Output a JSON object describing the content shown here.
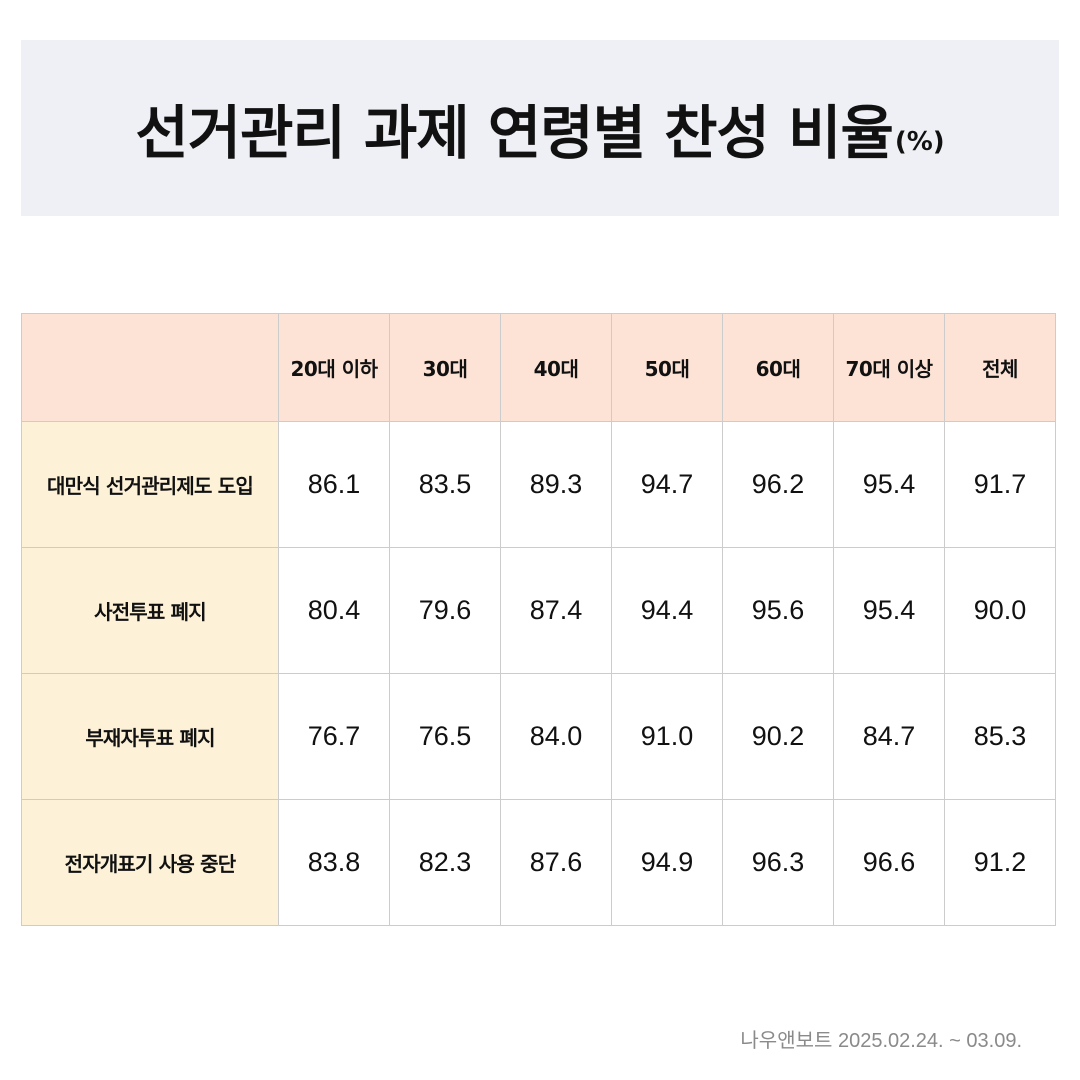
{
  "title": {
    "main": "선거관리 과제 연령별 찬성 비율",
    "unit": "(%)"
  },
  "source": "나우앤보트 2025.02.24. ~ 03.09.",
  "colors": {
    "title_bg": "#eef0f5",
    "header_bg": "#fde3d6",
    "row_header_bg": "#fdf1d8",
    "border": "#cccccc",
    "source_text": "#8a8a8a"
  },
  "chart_data": {
    "type": "table",
    "title": "선거관리 과제 연령별 찬성 비율(%)",
    "columns": [
      "20대 이하",
      "30대",
      "40대",
      "50대",
      "60대",
      "70대 이상",
      "전체"
    ],
    "rows": [
      {
        "label": "대만식 선거관리제도 도입",
        "values": [
          "86.1",
          "83.5",
          "89.3",
          "94.7",
          "96.2",
          "95.4",
          "91.7"
        ]
      },
      {
        "label": "사전투표 폐지",
        "values": [
          "80.4",
          "79.6",
          "87.4",
          "94.4",
          "95.6",
          "95.4",
          "90.0"
        ]
      },
      {
        "label": "부재자투표 폐지",
        "values": [
          "76.7",
          "76.5",
          "84.0",
          "91.0",
          "90.2",
          "84.7",
          "85.3"
        ]
      },
      {
        "label": "전자개표기 사용 중단",
        "values": [
          "83.8",
          "82.3",
          "87.6",
          "94.9",
          "96.3",
          "96.6",
          "91.2"
        ]
      }
    ]
  }
}
